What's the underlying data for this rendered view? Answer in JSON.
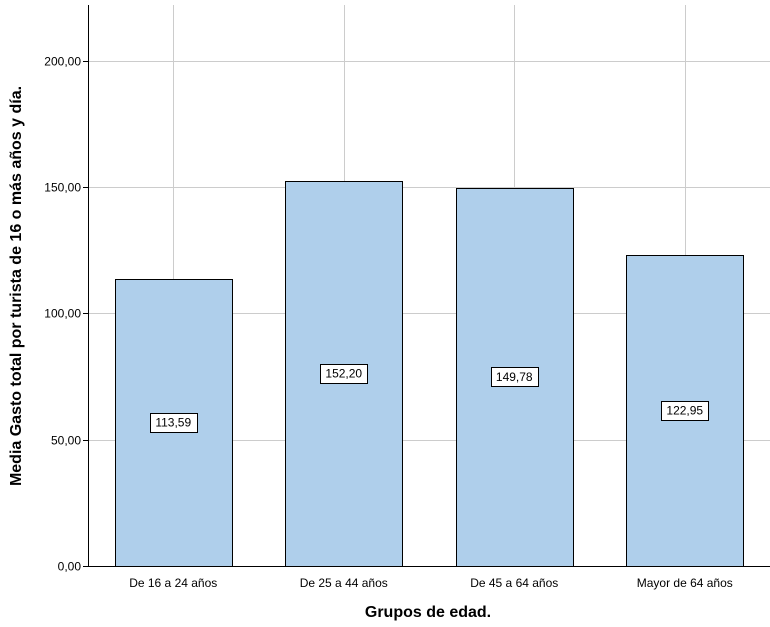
{
  "chart_data": {
    "type": "bar",
    "xlabel": "Grupos de edad.",
    "ylabel": "Media Gasto total por turista de 16 o más años y día.",
    "categories": [
      "De 16 a 24 años",
      "De 25 a 44 años",
      "De 45 a 64 años",
      "Mayor de 64 años"
    ],
    "values": [
      113.59,
      152.2,
      149.78,
      122.95
    ],
    "value_labels": [
      "113,59",
      "152,20",
      "149,78",
      "122,95"
    ],
    "yticks": [
      0,
      50,
      100,
      150,
      200
    ],
    "ytick_labels": [
      "0,00",
      "50,00",
      "100,00",
      "150,00",
      "200,00"
    ],
    "ylim": [
      0,
      222
    ],
    "grid": true,
    "legend": "none",
    "colors": {
      "bar": "#afcfeb",
      "grid": "#cccccc",
      "axis": "#000000"
    }
  }
}
